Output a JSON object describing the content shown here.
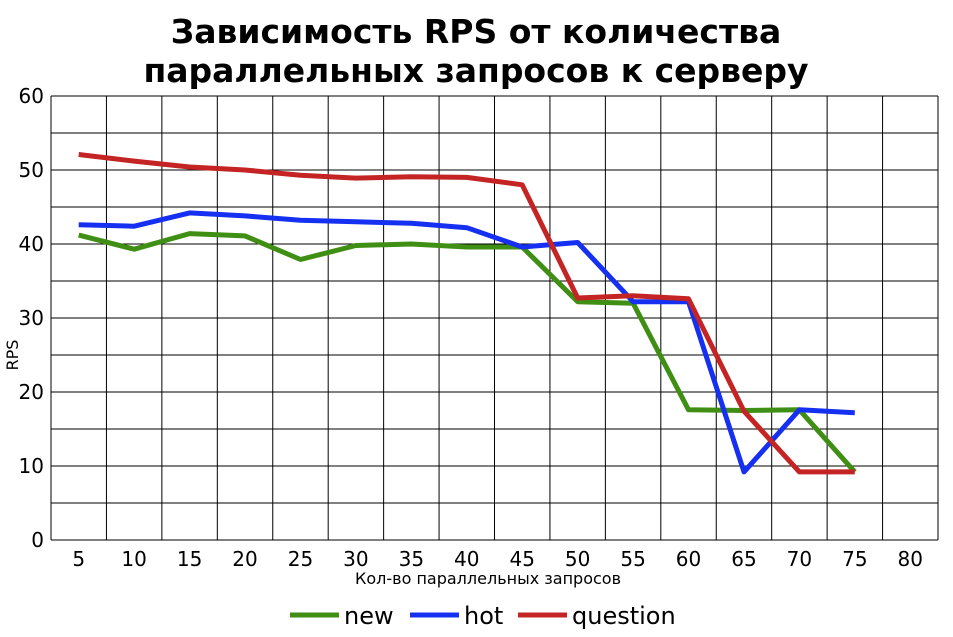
{
  "chart_data": {
    "type": "line",
    "title": [
      "Зависимость RPS от количества",
      "параллельных запросов к серверу"
    ],
    "xlabel": "Кол-во параллельных запросов",
    "ylabel": "RPS",
    "x": [
      5,
      10,
      15,
      20,
      25,
      30,
      35,
      40,
      45,
      50,
      55,
      60,
      65,
      70,
      75
    ],
    "x_ticks": [
      5,
      10,
      15,
      20,
      25,
      30,
      35,
      40,
      45,
      50,
      55,
      60,
      65,
      70,
      75,
      80
    ],
    "y_ticks": [
      0,
      10,
      20,
      30,
      40,
      50,
      60
    ],
    "xlim": [
      2.5,
      82.5
    ],
    "ylim": [
      0,
      60
    ],
    "grid": true,
    "legend_position": "bottom",
    "series": [
      {
        "name": "new",
        "color": "#3f8f14",
        "values": [
          41.2,
          39.3,
          41.4,
          41.1,
          37.9,
          39.8,
          40.0,
          39.6,
          39.6,
          32.2,
          32.0,
          17.6,
          17.5,
          17.6,
          9.2
        ]
      },
      {
        "name": "hot",
        "color": "#1530f0",
        "values": [
          42.6,
          42.4,
          44.2,
          43.8,
          43.2,
          43.0,
          42.8,
          42.2,
          39.6,
          40.2,
          32.2,
          32.2,
          9.2,
          17.6,
          17.2
        ]
      },
      {
        "name": "question",
        "color": "#c42424",
        "values": [
          52.1,
          51.2,
          50.4,
          50.0,
          49.3,
          48.9,
          49.1,
          49.0,
          48.0,
          32.7,
          33.0,
          32.6,
          17.4,
          9.2,
          9.2
        ]
      }
    ]
  }
}
